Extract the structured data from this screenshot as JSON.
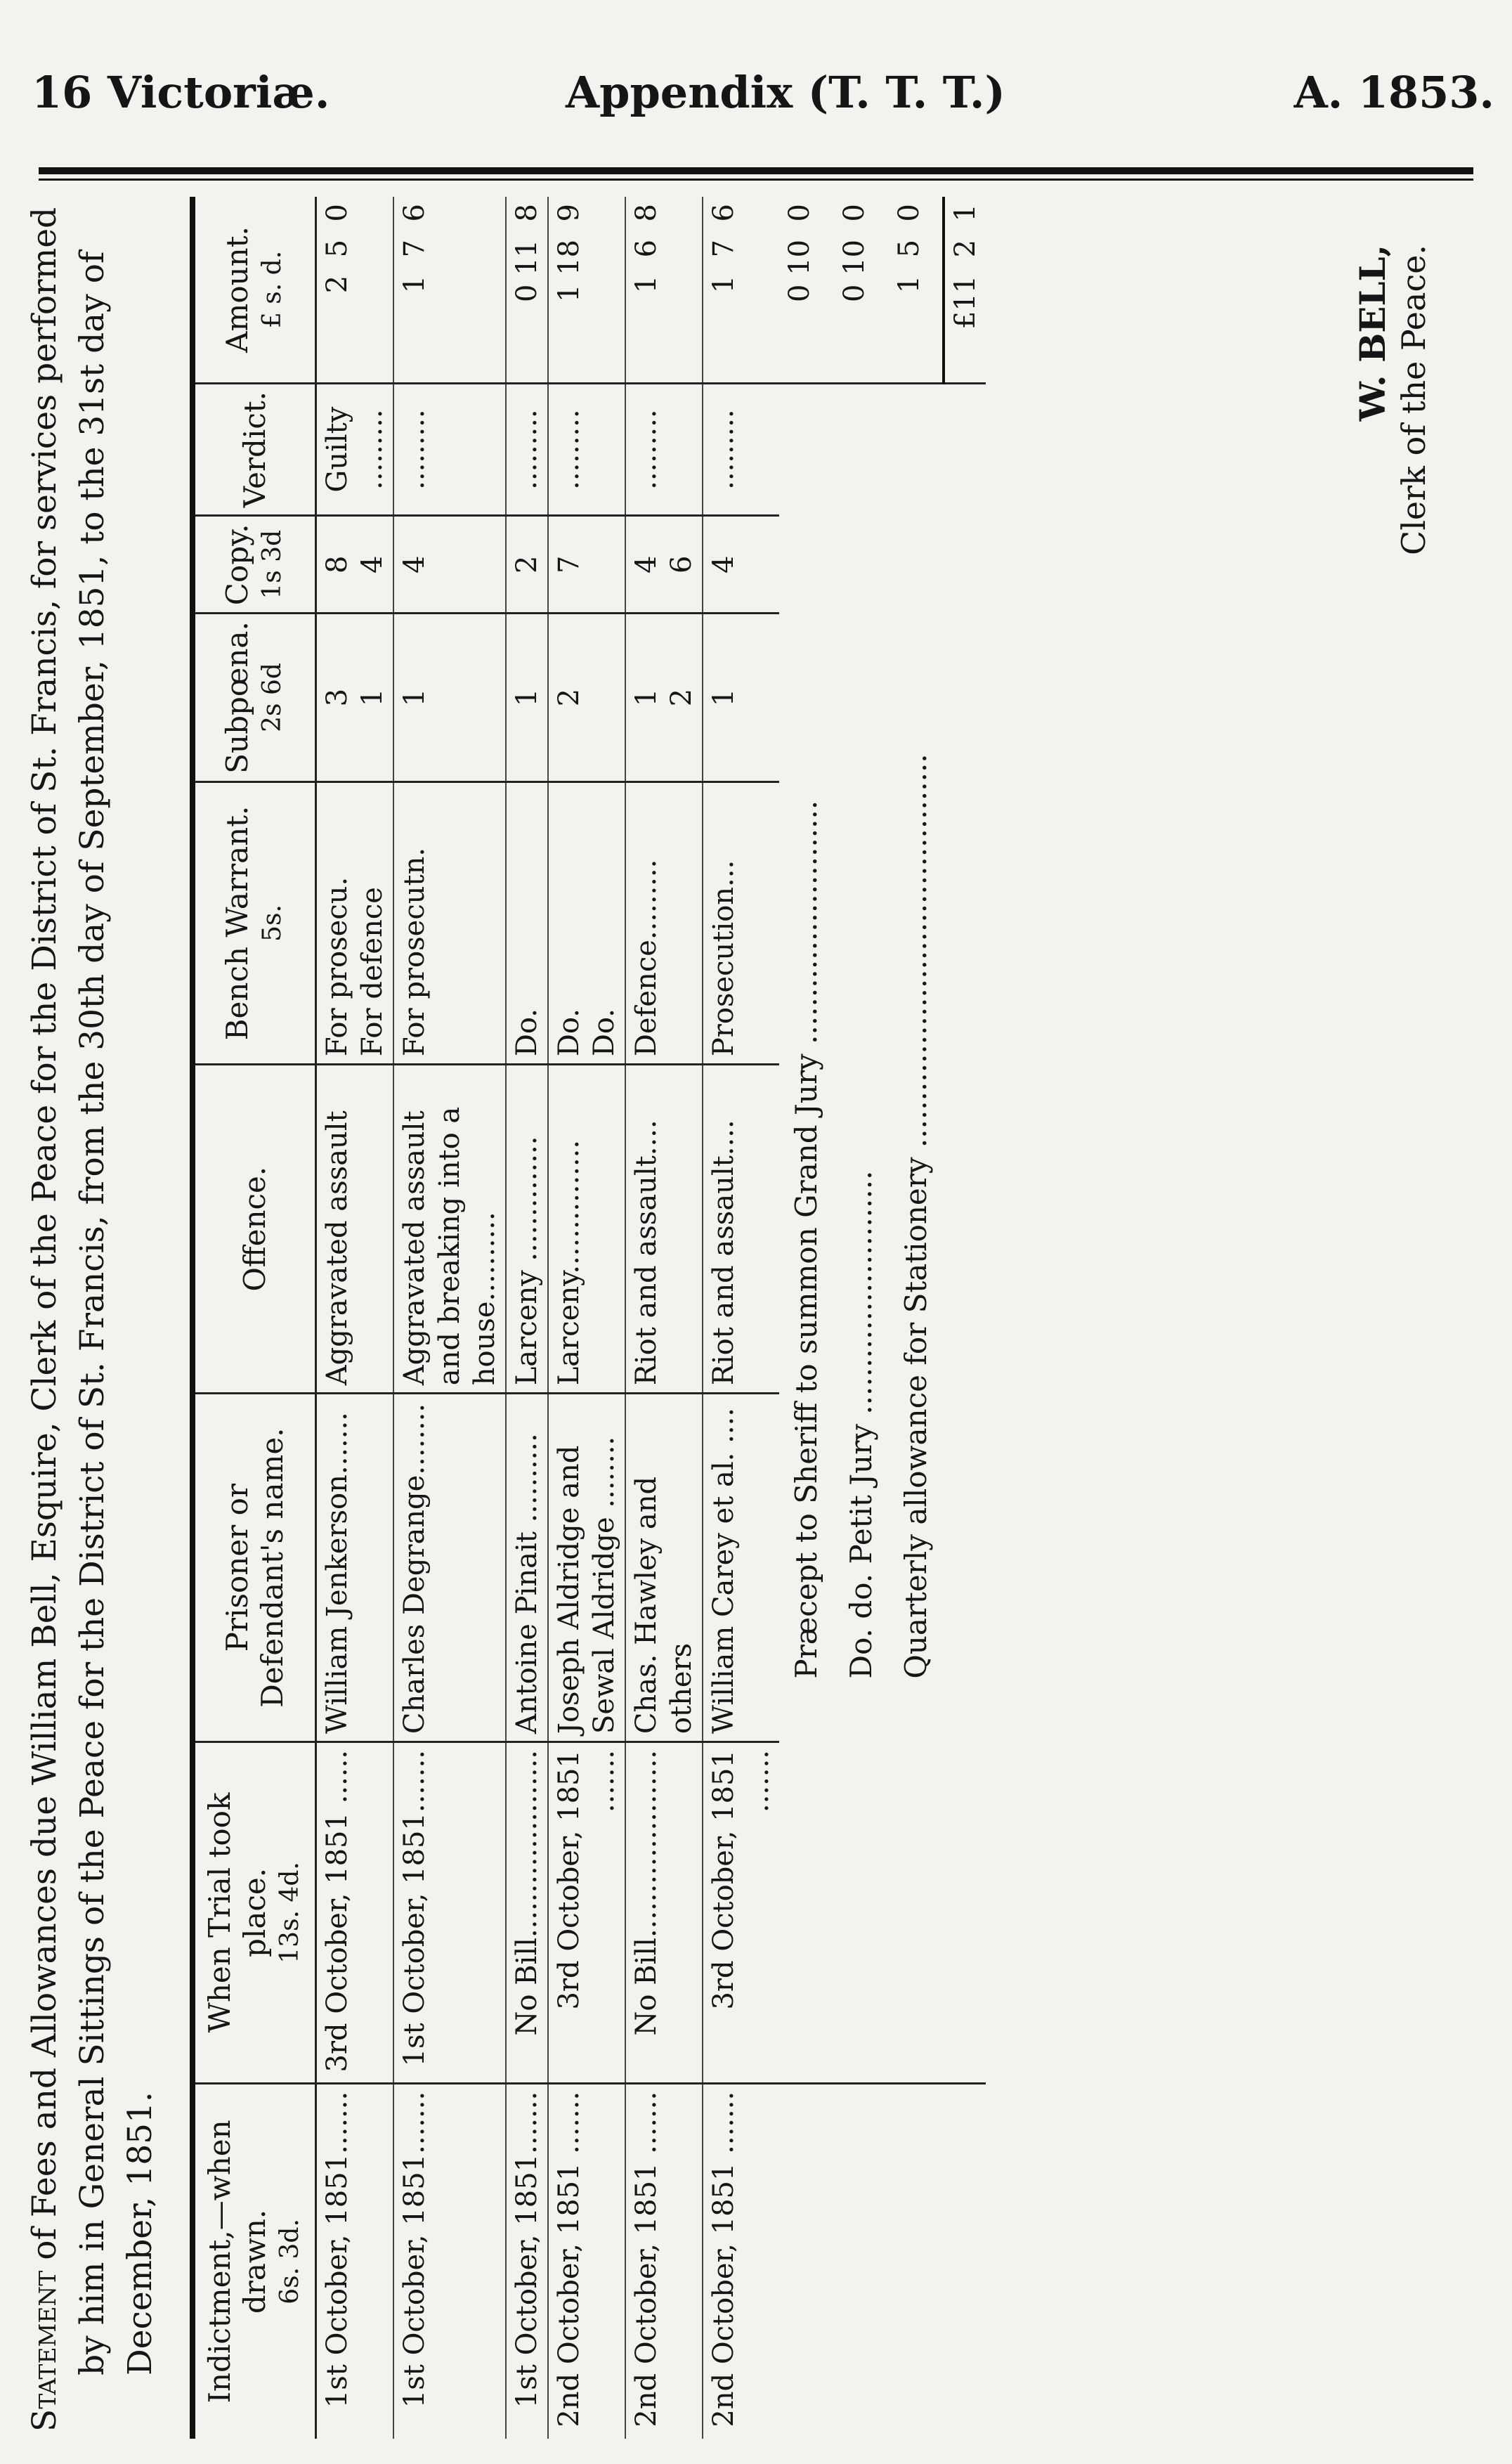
{
  "header": {
    "left": "16 Victoriæ.",
    "center": "Appendix (T. T. T.)",
    "right": "A. 1853."
  },
  "statement": {
    "lead": "Statement",
    "text": "of Fees and Allowances due William Bell, Esquire, Clerk of the Peace for the District of St. Francis, for services performed by him in General Sittings of the Peace for the District of St. Francis, from the 30th day of September, 1851, to the 31st day of December, 1851."
  },
  "columns": [
    {
      "label": "Indictment,—when drawn.",
      "sub": "6s. 3d."
    },
    {
      "label": "When Trial took place.",
      "sub": "13s. 4d."
    },
    {
      "label": "Prisoner or Defendant's name.",
      "sub": ""
    },
    {
      "label": "Offence.",
      "sub": ""
    },
    {
      "label": "Bench Warrant.",
      "sub": "5s."
    },
    {
      "label": "Subpœna.",
      "sub": "2s 6d"
    },
    {
      "label": "Copy.",
      "sub": "1s 3d"
    },
    {
      "label": "Verdict.",
      "sub": ""
    },
    {
      "label": "Amount.",
      "sub": "£  s.  d."
    }
  ],
  "rows": [
    [
      "1st October, 1851.......",
      "3rd October, 1851 ......",
      "William Jenkerson.......",
      "Aggravated assault",
      "For prosecu.\nFor defence",
      "3\n1",
      "8\n4",
      "Guilty\n.........",
      "2  5  0"
    ],
    [
      "1st October, 1851.......",
      "1st October, 1851.......",
      "Charles Degrange........",
      "Aggravated assault and breaking into a house..........",
      "For prosecutn.",
      "1",
      "4",
      ".........",
      "1  7  6"
    ],
    [
      "1st October, 1851.......",
      "No Bill.....................",
      "Antoine Pinait ..........",
      "Larceny ..............",
      "Do.",
      "1",
      "2",
      ".........",
      "0 11  8"
    ],
    [
      "2nd October, 1851 .......",
      "3rd October, 1851 .......",
      "Joseph Aldridge and Sewal Aldridge ........",
      "Larceny...............",
      "Do.\nDo.",
      "2",
      "7",
      ".........",
      "1 18  9"
    ],
    [
      "2nd October, 1851 .......",
      "No Bill.....................",
      "Chas. Hawley and others",
      "Riot and assault....",
      "Defence.........",
      "1\n2",
      "4\n6",
      ".........",
      "1  6  8"
    ],
    [
      "2nd October, 1851 .......",
      "3rd October, 1851 .......",
      "William Carey et al. ....",
      "Riot and assault....",
      "Prosecution...",
      "1",
      "4",
      ".........",
      "1  7  6"
    ]
  ],
  "extras": [
    {
      "label": "Præcept to Sheriff to summon Grand Jury ..........................",
      "amount": "0 10  0"
    },
    {
      "label": "Do.          do.          Petit Jury ..........................",
      "amount": "0 10  0"
    },
    {
      "label": "Quarterly allowance for Stationery ..........................................",
      "amount": "1  5  0"
    }
  ],
  "total": "£11  2  1",
  "signature": {
    "name": "W. BELL,",
    "title": "Clerk of the Peace."
  }
}
